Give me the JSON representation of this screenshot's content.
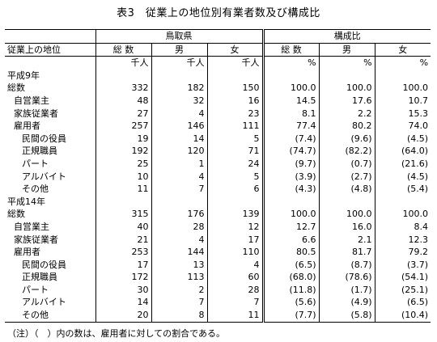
{
  "title": "表3　従業上の地位別有業者数及び構成比",
  "header": {
    "label_col": "従業上の地位",
    "group_tottori": "鳥取県",
    "group_ratio": "構成比",
    "sub": [
      "総 数",
      "男",
      "女",
      "総 数",
      "男",
      "女"
    ],
    "units": [
      "千人",
      "千人",
      "千人",
      "%",
      "%",
      "%"
    ]
  },
  "rows": [
    {
      "label": "平成9年",
      "indent": 0,
      "values": [
        "",
        "",
        "",
        "",
        "",
        ""
      ]
    },
    {
      "label": "総数",
      "indent": 0,
      "values": [
        "332",
        "182",
        "150",
        "100.0",
        "100.0",
        "100.0"
      ]
    },
    {
      "label": "自営業主",
      "indent": 1,
      "values": [
        "48",
        "32",
        "16",
        "14.5",
        "17.6",
        "10.7"
      ]
    },
    {
      "label": "家族従業者",
      "indent": 1,
      "values": [
        "27",
        "4",
        "23",
        "8.1",
        "2.2",
        "15.3"
      ]
    },
    {
      "label": "雇用者",
      "indent": 1,
      "values": [
        "257",
        "146",
        "111",
        "77.4",
        "80.2",
        "74.0"
      ]
    },
    {
      "label": "民間の役員",
      "indent": 2,
      "values": [
        "19",
        "14",
        "5",
        "(7.4)",
        "(9.6)",
        "(4.5)"
      ]
    },
    {
      "label": "正規職員",
      "indent": 2,
      "values": [
        "192",
        "120",
        "71",
        "(74.7)",
        "(82.2)",
        "(64.0)"
      ]
    },
    {
      "label": "パート",
      "indent": 2,
      "values": [
        "25",
        "1",
        "24",
        "(9.7)",
        "(0.7)",
        "(21.6)"
      ]
    },
    {
      "label": "アルバイト",
      "indent": 2,
      "values": [
        "10",
        "4",
        "5",
        "(3.9)",
        "(2.7)",
        "(4.5)"
      ]
    },
    {
      "label": "その他",
      "indent": 2,
      "values": [
        "11",
        "7",
        "6",
        "(4.3)",
        "(4.8)",
        "(5.4)"
      ]
    },
    {
      "label": "平成14年",
      "indent": 0,
      "values": [
        "",
        "",
        "",
        "",
        "",
        ""
      ]
    },
    {
      "label": "総数",
      "indent": 0,
      "values": [
        "315",
        "176",
        "139",
        "100.0",
        "100.0",
        "100.0"
      ]
    },
    {
      "label": "自営業主",
      "indent": 1,
      "values": [
        "40",
        "28",
        "12",
        "12.7",
        "16.0",
        "8.4"
      ]
    },
    {
      "label": "家族従業者",
      "indent": 1,
      "values": [
        "21",
        "4",
        "17",
        "6.6",
        "2.1",
        "12.3"
      ]
    },
    {
      "label": "雇用者",
      "indent": 1,
      "values": [
        "253",
        "144",
        "110",
        "80.5",
        "81.7",
        "79.2"
      ]
    },
    {
      "label": "民間の役員",
      "indent": 2,
      "values": [
        "17",
        "13",
        "4",
        "(6.5)",
        "(8.7)",
        "(3.7)"
      ]
    },
    {
      "label": "正規職員",
      "indent": 2,
      "values": [
        "172",
        "113",
        "60",
        "(68.0)",
        "(78.6)",
        "(54.1)"
      ]
    },
    {
      "label": "パート",
      "indent": 2,
      "values": [
        "30",
        "2",
        "28",
        "(11.8)",
        "(1.7)",
        "(25.1)"
      ]
    },
    {
      "label": "アルバイト",
      "indent": 2,
      "values": [
        "14",
        "7",
        "7",
        "(5.6)",
        "(4.9)",
        "(6.5)"
      ]
    },
    {
      "label": "その他",
      "indent": 2,
      "values": [
        "20",
        "8",
        "11",
        "(7.7)",
        "(5.8)",
        "(10.4)"
      ]
    }
  ],
  "note": "（注）（　）内の数は、雇用者に対しての割合である。"
}
